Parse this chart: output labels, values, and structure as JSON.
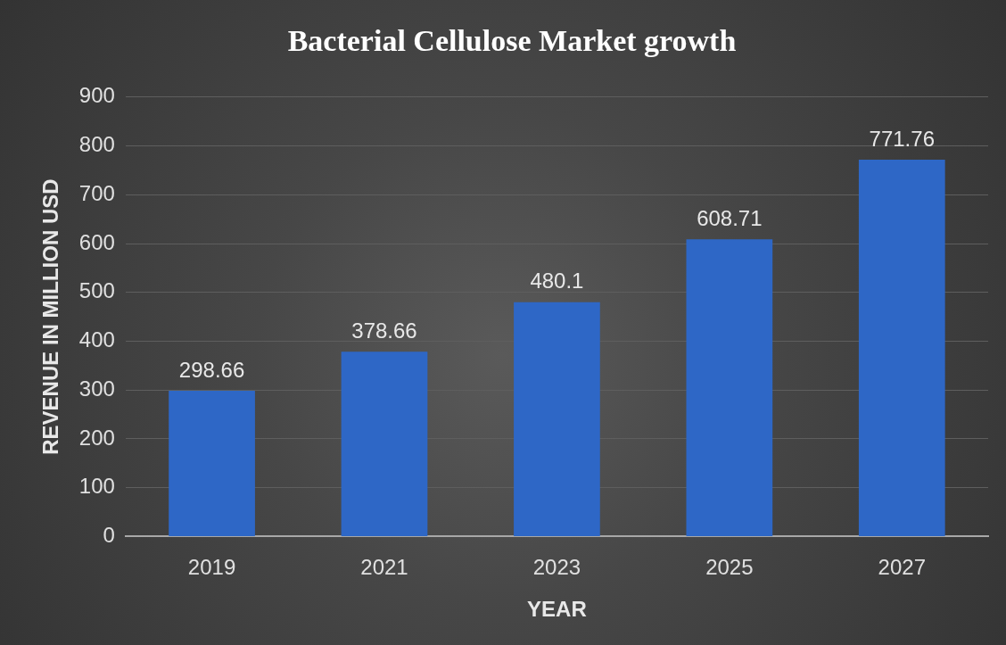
{
  "chart_data": {
    "type": "bar",
    "title": "Bacterial Cellulose Market growth",
    "xlabel": "YEAR",
    "ylabel": "REVENUE IN MILLION USD",
    "categories": [
      "2019",
      "2021",
      "2023",
      "2025",
      "2027"
    ],
    "values": [
      298.66,
      378.66,
      480.1,
      608.71,
      771.76
    ],
    "color": "#2e67c6",
    "ylim": [
      0,
      900
    ],
    "yticks": [
      0,
      100,
      200,
      300,
      400,
      500,
      600,
      700,
      800,
      900
    ],
    "grid": "y",
    "data_labels": true,
    "legend": false
  }
}
